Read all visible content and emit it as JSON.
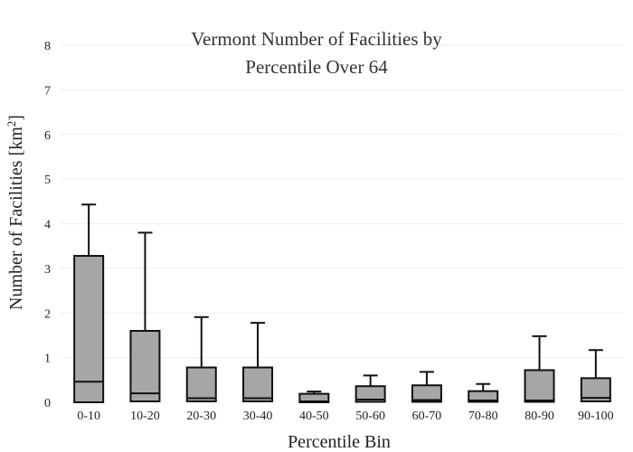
{
  "chart_data": {
    "type": "box",
    "title_lines": [
      "Vermont Number of Facilities by",
      "Percentile Over 64"
    ],
    "xlabel": "Percentile Bin",
    "ylabel_main": "Number of Facilities  [km",
    "ylabel_sup": "2",
    "ylabel_close": "]",
    "ylim": [
      0,
      8
    ],
    "yticks": [
      "0",
      "1",
      "2",
      "3",
      "4",
      "5",
      "6",
      "7",
      "8"
    ],
    "grid": true,
    "colors": {
      "box_fill": "#a6a6a6",
      "box_stroke": "#111111",
      "grid": "#eeeeee"
    },
    "categories": [
      "0-10",
      "10-20",
      "20-30",
      "30-40",
      "40-50",
      "50-60",
      "60-70",
      "70-80",
      "80-90",
      "90-100"
    ],
    "boxes": [
      {
        "min": 0,
        "q1": 0,
        "median": 0.46,
        "q3": 3.28,
        "max": 4.43
      },
      {
        "min": 0,
        "q1": 0.02,
        "median": 0.2,
        "q3": 1.6,
        "max": 3.8
      },
      {
        "min": 0,
        "q1": 0.02,
        "median": 0.09,
        "q3": 0.78,
        "max": 1.91
      },
      {
        "min": 0,
        "q1": 0.02,
        "median": 0.09,
        "q3": 0.78,
        "max": 1.78
      },
      {
        "min": 0,
        "q1": 0,
        "median": 0.02,
        "q3": 0.19,
        "max": 0.24
      },
      {
        "min": 0,
        "q1": 0.01,
        "median": 0.06,
        "q3": 0.36,
        "max": 0.6
      },
      {
        "min": 0,
        "q1": 0.01,
        "median": 0.05,
        "q3": 0.38,
        "max": 0.68
      },
      {
        "min": 0,
        "q1": 0.01,
        "median": 0.04,
        "q3": 0.25,
        "max": 0.41
      },
      {
        "min": 0,
        "q1": 0.01,
        "median": 0.04,
        "q3": 0.72,
        "max": 1.48
      },
      {
        "min": 0,
        "q1": 0.02,
        "median": 0.1,
        "q3": 0.54,
        "max": 1.17
      }
    ]
  }
}
